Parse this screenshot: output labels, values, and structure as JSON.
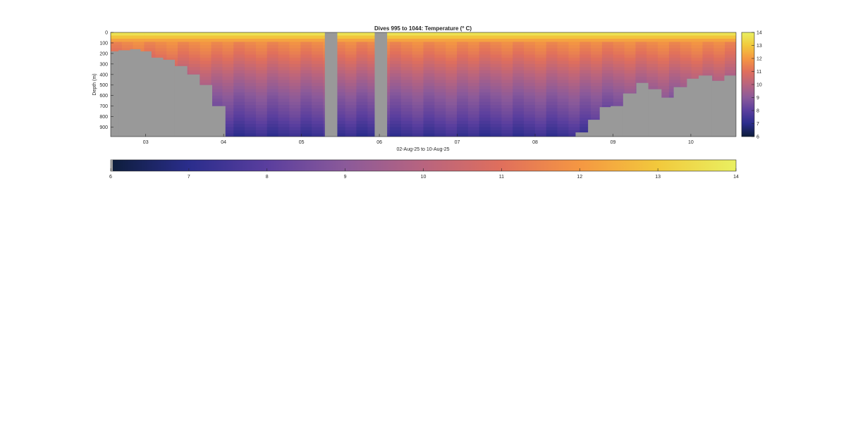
{
  "chart_data": {
    "type": "heatmap",
    "title": "Dives 995 to 1044: Temperature (",
    "title_superscript": "o",
    "title_suffix": " C)",
    "xlabel": "02-Aug-25 to 10-Aug-25",
    "ylabel": "Depth (m)",
    "x_range": [
      2.55,
      10.58
    ],
    "y_range": [
      0,
      990
    ],
    "y_reversed": true,
    "x_ticks": [
      {
        "value": 3,
        "label": "03"
      },
      {
        "value": 4,
        "label": "04"
      },
      {
        "value": 5,
        "label": "05"
      },
      {
        "value": 6,
        "label": "06"
      },
      {
        "value": 7,
        "label": "07"
      },
      {
        "value": 8,
        "label": "08"
      },
      {
        "value": 9,
        "label": "09"
      },
      {
        "value": 10,
        "label": "10"
      }
    ],
    "y_ticks": [
      0,
      100,
      200,
      300,
      400,
      500,
      600,
      700,
      800,
      900
    ],
    "colorbar_right": {
      "min": 6,
      "max": 14,
      "ticks": [
        6,
        7,
        8,
        9,
        10,
        11,
        12,
        13,
        14
      ]
    },
    "colorbar_bottom": {
      "min": 6,
      "max": 14,
      "ticks": [
        6,
        7,
        8,
        9,
        10,
        11,
        12,
        13,
        14
      ]
    },
    "colormap": [
      "#0d1d3a",
      "#2a2d8c",
      "#5a3e9e",
      "#8b5a9a",
      "#b8647f",
      "#e06f5c",
      "#f59742",
      "#f2c93c",
      "#e9f061"
    ],
    "no_data_color": "#999999",
    "temperature_profile": [
      {
        "depth": 0,
        "temp": 14.0
      },
      {
        "depth": 40,
        "temp": 13.0
      },
      {
        "depth": 100,
        "temp": 11.7
      },
      {
        "depth": 200,
        "temp": 11.2
      },
      {
        "depth": 300,
        "temp": 10.6
      },
      {
        "depth": 400,
        "temp": 10.0
      },
      {
        "depth": 500,
        "temp": 9.5
      },
      {
        "depth": 600,
        "temp": 9.0
      },
      {
        "depth": 700,
        "temp": 8.6
      },
      {
        "depth": 800,
        "temp": 8.2
      },
      {
        "depth": 900,
        "temp": 7.7
      },
      {
        "depth": 990,
        "temp": 7.2
      }
    ],
    "seafloor_depth": [
      {
        "x": 2.55,
        "depth": 180
      },
      {
        "x": 2.65,
        "depth": 170
      },
      {
        "x": 2.8,
        "depth": 160
      },
      {
        "x": 2.93,
        "depth": 180
      },
      {
        "x": 3.07,
        "depth": 240
      },
      {
        "x": 3.22,
        "depth": 260
      },
      {
        "x": 3.37,
        "depth": 320
      },
      {
        "x": 3.53,
        "depth": 400
      },
      {
        "x": 3.69,
        "depth": 500
      },
      {
        "x": 3.85,
        "depth": 700
      },
      {
        "x": 4.02,
        "depth": 990
      },
      {
        "x": 8.52,
        "depth": 950
      },
      {
        "x": 8.68,
        "depth": 830
      },
      {
        "x": 8.83,
        "depth": 710
      },
      {
        "x": 8.97,
        "depth": 700
      },
      {
        "x": 9.13,
        "depth": 580
      },
      {
        "x": 9.3,
        "depth": 480
      },
      {
        "x": 9.45,
        "depth": 540
      },
      {
        "x": 9.62,
        "depth": 620
      },
      {
        "x": 9.78,
        "depth": 520
      },
      {
        "x": 9.95,
        "depth": 440
      },
      {
        "x": 10.1,
        "depth": 410
      },
      {
        "x": 10.27,
        "depth": 460
      },
      {
        "x": 10.43,
        "depth": 410
      }
    ],
    "data_gaps": [
      [
        5.3,
        5.46
      ],
      [
        5.94,
        6.1
      ]
    ]
  }
}
